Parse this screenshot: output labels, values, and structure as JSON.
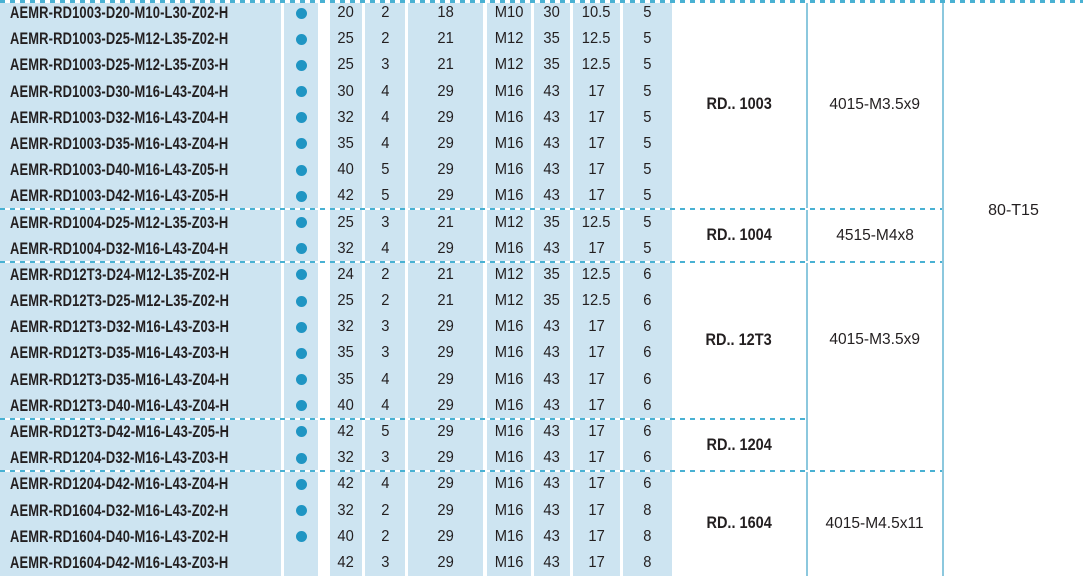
{
  "table": {
    "key_code": "80-T15",
    "rows": [
      {
        "code": "AEMR-RD1003-D20-M10-L30-Z02-H",
        "dot": true,
        "values": [
          "20",
          "2",
          "18",
          "M10",
          "30",
          "10.5",
          "5"
        ]
      },
      {
        "code": "AEMR-RD1003-D25-M12-L35-Z02-H",
        "dot": true,
        "values": [
          "25",
          "2",
          "21",
          "M12",
          "35",
          "12.5",
          "5"
        ]
      },
      {
        "code": "AEMR-RD1003-D25-M12-L35-Z03-H",
        "dot": true,
        "values": [
          "25",
          "3",
          "21",
          "M12",
          "35",
          "12.5",
          "5"
        ]
      },
      {
        "code": "AEMR-RD1003-D30-M16-L43-Z04-H",
        "dot": true,
        "values": [
          "30",
          "4",
          "29",
          "M16",
          "43",
          "17",
          "5"
        ]
      },
      {
        "code": "AEMR-RD1003-D32-M16-L43-Z04-H",
        "dot": true,
        "values": [
          "32",
          "4",
          "29",
          "M16",
          "43",
          "17",
          "5"
        ]
      },
      {
        "code": "AEMR-RD1003-D35-M16-L43-Z04-H",
        "dot": true,
        "values": [
          "35",
          "4",
          "29",
          "M16",
          "43",
          "17",
          "5"
        ]
      },
      {
        "code": "AEMR-RD1003-D40-M16-L43-Z05-H",
        "dot": true,
        "values": [
          "40",
          "5",
          "29",
          "M16",
          "43",
          "17",
          "5"
        ]
      },
      {
        "code": "AEMR-RD1003-D42-M16-L43-Z05-H",
        "dot": true,
        "values": [
          "42",
          "5",
          "29",
          "M16",
          "43",
          "17",
          "5"
        ]
      },
      {
        "code": "AEMR-RD1004-D25-M12-L35-Z03-H",
        "dot": true,
        "values": [
          "25",
          "3",
          "21",
          "M12",
          "35",
          "12.5",
          "5"
        ]
      },
      {
        "code": "AEMR-RD1004-D32-M16-L43-Z04-H",
        "dot": true,
        "values": [
          "32",
          "4",
          "29",
          "M16",
          "43",
          "17",
          "5"
        ]
      },
      {
        "code": "AEMR-RD12T3-D24-M12-L35-Z02-H",
        "dot": true,
        "values": [
          "24",
          "2",
          "21",
          "M12",
          "35",
          "12.5",
          "6"
        ]
      },
      {
        "code": "AEMR-RD12T3-D25-M12-L35-Z02-H",
        "dot": true,
        "values": [
          "25",
          "2",
          "21",
          "M12",
          "35",
          "12.5",
          "6"
        ]
      },
      {
        "code": "AEMR-RD12T3-D32-M16-L43-Z03-H",
        "dot": true,
        "values": [
          "32",
          "3",
          "29",
          "M16",
          "43",
          "17",
          "6"
        ]
      },
      {
        "code": "AEMR-RD12T3-D35-M16-L43-Z03-H",
        "dot": true,
        "values": [
          "35",
          "3",
          "29",
          "M16",
          "43",
          "17",
          "6"
        ]
      },
      {
        "code": "AEMR-RD12T3-D35-M16-L43-Z04-H",
        "dot": true,
        "values": [
          "35",
          "4",
          "29",
          "M16",
          "43",
          "17",
          "6"
        ]
      },
      {
        "code": "AEMR-RD12T3-D40-M16-L43-Z04-H",
        "dot": true,
        "values": [
          "40",
          "4",
          "29",
          "M16",
          "43",
          "17",
          "6"
        ]
      },
      {
        "code": "AEMR-RD12T3-D42-M16-L43-Z05-H",
        "dot": true,
        "values": [
          "42",
          "5",
          "29",
          "M16",
          "43",
          "17",
          "6"
        ]
      },
      {
        "code": "AEMR-RD1204-D32-M16-L43-Z03-H",
        "dot": true,
        "values": [
          "32",
          "3",
          "29",
          "M16",
          "43",
          "17",
          "6"
        ]
      },
      {
        "code": "AEMR-RD1204-D42-M16-L43-Z04-H",
        "dot": true,
        "values": [
          "42",
          "4",
          "29",
          "M16",
          "43",
          "17",
          "6"
        ]
      },
      {
        "code": "AEMR-RD1604-D32-M16-L43-Z02-H",
        "dot": true,
        "values": [
          "32",
          "2",
          "29",
          "M16",
          "43",
          "17",
          "8"
        ]
      },
      {
        "code": "AEMR-RD1604-D40-M16-L43-Z02-H",
        "dot": true,
        "values": [
          "40",
          "2",
          "29",
          "M16",
          "43",
          "17",
          "8"
        ]
      },
      {
        "code": "AEMR-RD1604-D42-M16-L43-Z03-H",
        "dot": false,
        "values": [
          "42",
          "3",
          "29",
          "M16",
          "43",
          "17",
          "8"
        ]
      }
    ],
    "rd_cells": [
      {
        "label": "RD.. 1003",
        "row_start": 1,
        "row_end": 8
      },
      {
        "label": "RD.. 1004",
        "row_start": 9,
        "row_end": 10
      },
      {
        "label": "RD.. 12T3",
        "row_start": 11,
        "row_end": 16
      },
      {
        "label": "RD.. 1204",
        "row_start": 17,
        "row_end": 18
      },
      {
        "label": "RD.. 1604",
        "row_start": 19,
        "row_end": 22
      }
    ],
    "screw_cells": [
      {
        "label": "4015-M3.5x9",
        "row_start": 1,
        "row_end": 8,
        "raised": false
      },
      {
        "label": "4515-M4x8",
        "row_start": 9,
        "row_end": 10,
        "raised": false
      },
      {
        "label": "4015-M3.5x9",
        "row_start": 11,
        "row_end": 18,
        "raised": true
      },
      {
        "label": "4015-M4.5x11",
        "row_start": 19,
        "row_end": 22,
        "raised": false
      }
    ],
    "colors": {
      "row_bg": "#cde4f1",
      "dot": "#1f95c3",
      "ink": "#231f20",
      "grid_line": "#8cc8de",
      "dash": "#49b1d3"
    }
  }
}
